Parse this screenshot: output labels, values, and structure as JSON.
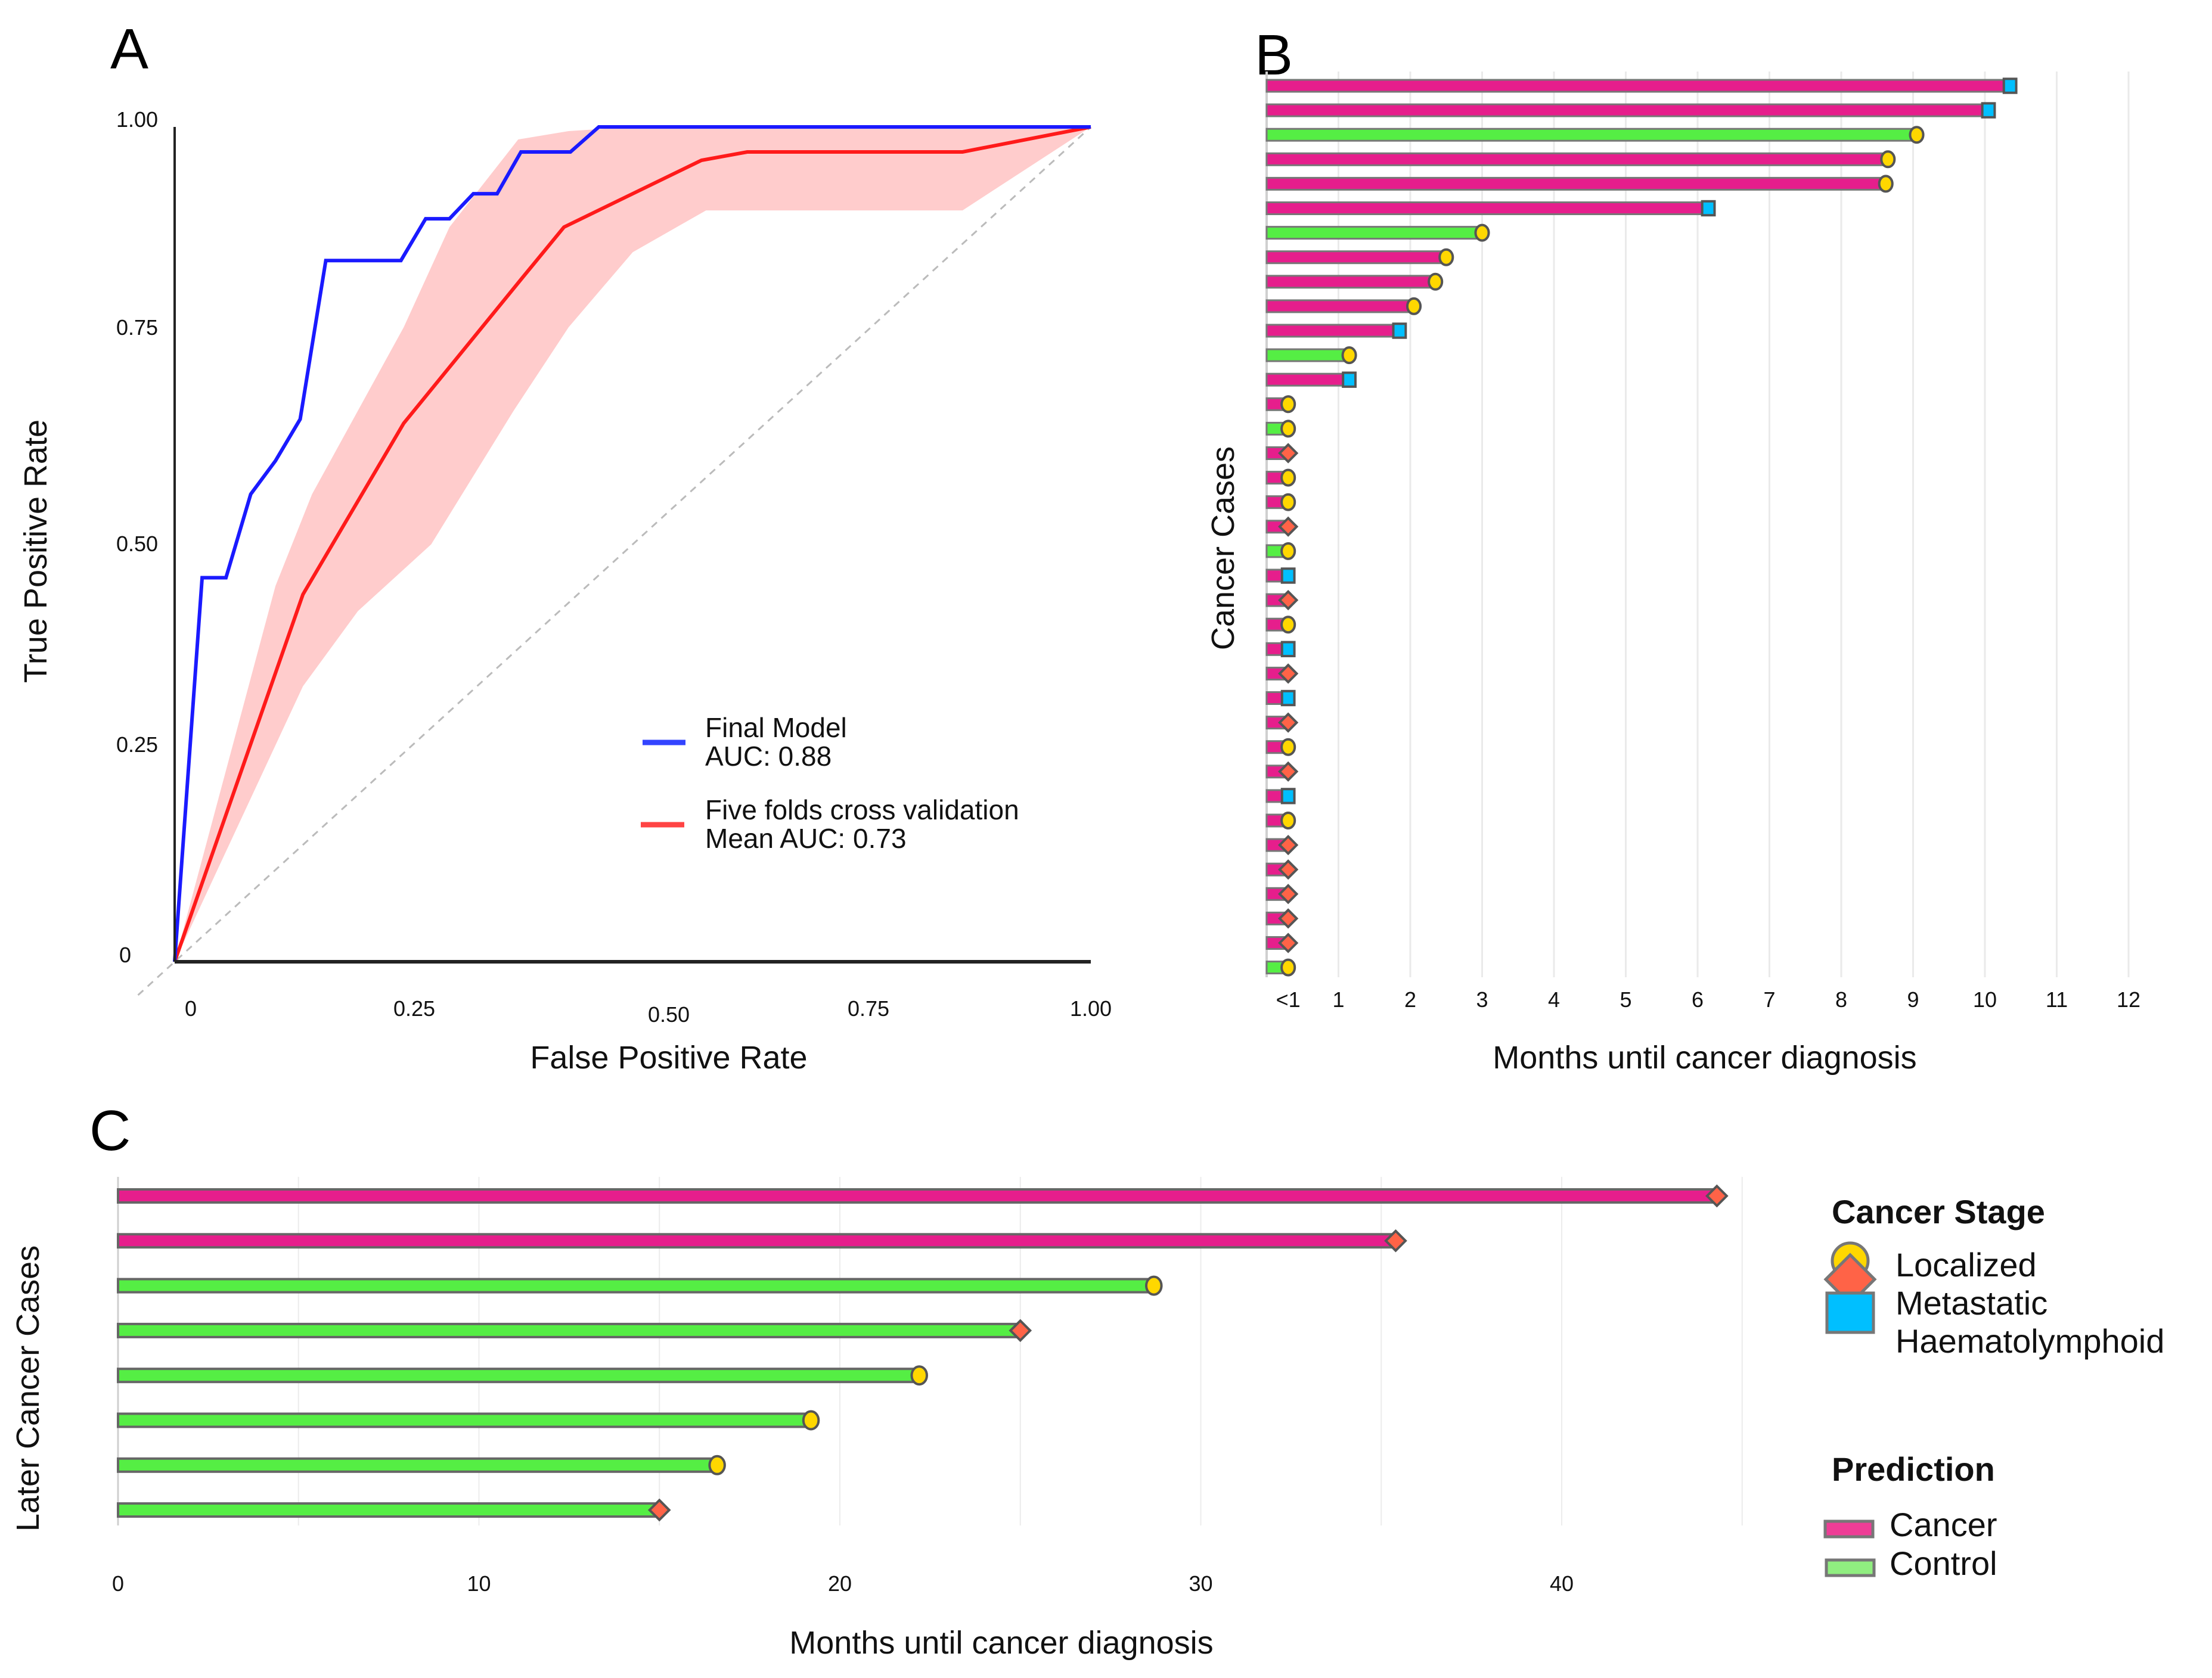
{
  "panels": {
    "a": "A",
    "b": "B",
    "c": "C"
  },
  "colors": {
    "final_model": "#1a1aff",
    "cv_mean": "#ff1a1a",
    "cv_band": "#ffcccc",
    "cancer": "#e61e8c",
    "control": "#55ee44",
    "localized": "#ffd700",
    "metastatic": "#ff6347",
    "haematolymphoid": "#00bfff",
    "legend_cancer": "#ee3d96",
    "legend_control": "#90ee80"
  },
  "chart_data": [
    {
      "id": "A",
      "type": "line",
      "title": "",
      "xlabel": "False Positive Rate",
      "ylabel": "True Positive Rate",
      "xlim": [
        0,
        1
      ],
      "ylim": [
        0,
        1
      ],
      "xticks": [
        "0",
        "0.25",
        "0.50",
        "0.75",
        "1.00"
      ],
      "yticks": [
        "0",
        "0.25",
        "0.50",
        "0.75",
        "1.00"
      ],
      "grid": false,
      "legend_position": "bottom-right",
      "series": [
        {
          "name": "Final Model",
          "label_line1": "Final Model",
          "label_line2": "AUC: 0.88",
          "auc": 0.88,
          "x": [
            0,
            0.03,
            0.056,
            0.083,
            0.11,
            0.137,
            0.165,
            0.247,
            0.274,
            0.3,
            0.326,
            0.352,
            0.378,
            0.432,
            0.463,
            1.0
          ],
          "y": [
            0,
            0.46,
            0.46,
            0.56,
            0.6,
            0.65,
            0.84,
            0.84,
            0.89,
            0.89,
            0.92,
            0.92,
            0.97,
            0.97,
            1.0,
            1.0
          ]
        },
        {
          "name": "Five folds cross validation",
          "label_line1": "Five folds cross validation",
          "label_line2": "Mean AUC: 0.73",
          "auc": 0.73,
          "x": [
            0,
            0.14,
            0.25,
            0.38,
            0.425,
            0.575,
            0.625,
            0.86,
            1.0
          ],
          "y": [
            0,
            0.44,
            0.645,
            0.82,
            0.88,
            0.96,
            0.97,
            0.97,
            1.0
          ],
          "band_upper": {
            "x": [
              0,
              0.11,
              0.15,
              0.25,
              0.3,
              0.375,
              0.43,
              0.5,
              1.0
            ],
            "y": [
              0,
              0.45,
              0.56,
              0.76,
              0.88,
              0.985,
              0.995,
              1.0,
              1.0
            ]
          },
          "band_lower": {
            "x": [
              0,
              0.14,
              0.2,
              0.28,
              0.37,
              0.43,
              0.5,
              0.58,
              0.86,
              1.0
            ],
            "y": [
              0,
              0.33,
              0.42,
              0.5,
              0.66,
              0.76,
              0.85,
              0.9,
              0.9,
              1.0
            ]
          }
        },
        {
          "name": "Chance",
          "style": "dashed",
          "x": [
            0,
            1
          ],
          "y": [
            0,
            1
          ]
        }
      ]
    },
    {
      "id": "B",
      "type": "bar",
      "orientation": "horizontal",
      "xlabel": "Months until cancer diagnosis",
      "ylabel": "Cancer Cases",
      "xlim": [
        0,
        12
      ],
      "xticks": [
        "<1",
        "1",
        "2",
        "3",
        "4",
        "5",
        "6",
        "7",
        "8",
        "9",
        "10",
        "11",
        "12"
      ],
      "grid": true,
      "cases": [
        {
          "months": 10.35,
          "prediction": "Cancer",
          "stage": "Haematolymphoid"
        },
        {
          "months": 10.05,
          "prediction": "Cancer",
          "stage": "Haematolymphoid"
        },
        {
          "months": 9.05,
          "prediction": "Control",
          "stage": "Localized"
        },
        {
          "months": 8.65,
          "prediction": "Cancer",
          "stage": "Localized"
        },
        {
          "months": 8.62,
          "prediction": "Cancer",
          "stage": "Localized"
        },
        {
          "months": 6.15,
          "prediction": "Cancer",
          "stage": "Haematolymphoid"
        },
        {
          "months": 3.0,
          "prediction": "Control",
          "stage": "Localized"
        },
        {
          "months": 2.5,
          "prediction": "Cancer",
          "stage": "Localized"
        },
        {
          "months": 2.35,
          "prediction": "Cancer",
          "stage": "Localized"
        },
        {
          "months": 2.05,
          "prediction": "Cancer",
          "stage": "Localized"
        },
        {
          "months": 1.85,
          "prediction": "Cancer",
          "stage": "Haematolymphoid"
        },
        {
          "months": 1.15,
          "prediction": "Control",
          "stage": "Localized"
        },
        {
          "months": 1.15,
          "prediction": "Cancer",
          "stage": "Haematolymphoid"
        },
        {
          "months": "<1",
          "prediction": "Cancer",
          "stage": "Localized"
        },
        {
          "months": "<1",
          "prediction": "Control",
          "stage": "Localized"
        },
        {
          "months": "<1",
          "prediction": "Cancer",
          "stage": "Metastatic"
        },
        {
          "months": "<1",
          "prediction": "Cancer",
          "stage": "Localized"
        },
        {
          "months": "<1",
          "prediction": "Cancer",
          "stage": "Localized"
        },
        {
          "months": "<1",
          "prediction": "Cancer",
          "stage": "Metastatic"
        },
        {
          "months": "<1",
          "prediction": "Control",
          "stage": "Localized"
        },
        {
          "months": "<1",
          "prediction": "Cancer",
          "stage": "Haematolymphoid"
        },
        {
          "months": "<1",
          "prediction": "Cancer",
          "stage": "Metastatic"
        },
        {
          "months": "<1",
          "prediction": "Cancer",
          "stage": "Localized"
        },
        {
          "months": "<1",
          "prediction": "Cancer",
          "stage": "Haematolymphoid"
        },
        {
          "months": "<1",
          "prediction": "Cancer",
          "stage": "Metastatic"
        },
        {
          "months": "<1",
          "prediction": "Cancer",
          "stage": "Haematolymphoid"
        },
        {
          "months": "<1",
          "prediction": "Cancer",
          "stage": "Metastatic"
        },
        {
          "months": "<1",
          "prediction": "Cancer",
          "stage": "Localized"
        },
        {
          "months": "<1",
          "prediction": "Cancer",
          "stage": "Metastatic"
        },
        {
          "months": "<1",
          "prediction": "Cancer",
          "stage": "Haematolymphoid"
        },
        {
          "months": "<1",
          "prediction": "Cancer",
          "stage": "Localized"
        },
        {
          "months": "<1",
          "prediction": "Cancer",
          "stage": "Metastatic"
        },
        {
          "months": "<1",
          "prediction": "Cancer",
          "stage": "Metastatic"
        },
        {
          "months": "<1",
          "prediction": "Cancer",
          "stage": "Metastatic"
        },
        {
          "months": "<1",
          "prediction": "Cancer",
          "stage": "Metastatic"
        },
        {
          "months": "<1",
          "prediction": "Cancer",
          "stage": "Metastatic"
        },
        {
          "months": "<1",
          "prediction": "Control",
          "stage": "Localized"
        }
      ]
    },
    {
      "id": "C",
      "type": "bar",
      "orientation": "horizontal",
      "xlabel": "Months until cancer diagnosis",
      "ylabel": "Later Cancer Cases",
      "xlim": [
        0,
        45
      ],
      "xticks": [
        "0",
        "10",
        "20",
        "30",
        "40"
      ],
      "xtick_values": [
        0,
        10,
        20,
        30,
        40
      ],
      "grid": true,
      "cases": [
        {
          "months": 44.3,
          "prediction": "Cancer",
          "stage": "Metastatic"
        },
        {
          "months": 35.4,
          "prediction": "Cancer",
          "stage": "Metastatic"
        },
        {
          "months": 28.7,
          "prediction": "Control",
          "stage": "Localized"
        },
        {
          "months": 25.0,
          "prediction": "Control",
          "stage": "Metastatic"
        },
        {
          "months": 22.2,
          "prediction": "Control",
          "stage": "Localized"
        },
        {
          "months": 19.2,
          "prediction": "Control",
          "stage": "Localized"
        },
        {
          "months": 16.6,
          "prediction": "Control",
          "stage": "Localized"
        },
        {
          "months": 15.0,
          "prediction": "Control",
          "stage": "Metastatic"
        }
      ]
    }
  ],
  "legend": {
    "stage_title": "Cancer Stage",
    "stages": [
      {
        "label": "Localized",
        "shape": "circle"
      },
      {
        "label": "Metastatic",
        "shape": "diamond"
      },
      {
        "label": "Haematolymphoid",
        "shape": "square"
      }
    ],
    "prediction_title": "Prediction",
    "predictions": [
      {
        "label": "Cancer"
      },
      {
        "label": "Control"
      }
    ]
  }
}
